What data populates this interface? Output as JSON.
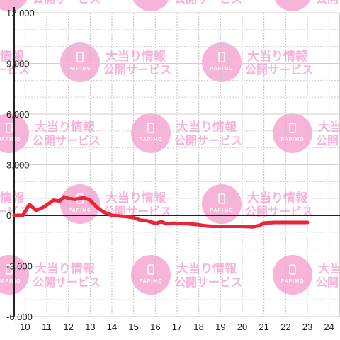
{
  "watermark": {
    "line1": "大当り情報",
    "line2": "公開サービス",
    "brand": "PAPIMO",
    "color": "#f7b3d8"
  },
  "chart_data": {
    "type": "line",
    "title": "",
    "xlabel": "",
    "ylabel": "",
    "xlim": [
      9.5,
      24.5
    ],
    "ylim": [
      -6000,
      12000
    ],
    "x_ticks": [
      "10",
      "11",
      "12",
      "13",
      "14",
      "15",
      "16",
      "17",
      "18",
      "19",
      "20",
      "21",
      "22",
      "23",
      "24"
    ],
    "y_ticks": [
      "12,000",
      "9,000",
      "6,000",
      "3,000",
      "0",
      "-3,000",
      "-6,000"
    ],
    "grid": true,
    "line_color": "#e8253a",
    "series": [
      {
        "x": [
          9.5,
          9.9,
          10.2,
          10.5,
          10.8,
          11.1,
          11.3,
          11.6,
          11.8,
          12.0,
          12.3,
          12.7,
          13.0,
          13.3,
          13.6,
          14.0,
          14.3,
          14.7,
          15.0,
          15.3,
          15.6,
          16.0,
          16.3,
          16.5,
          16.8,
          17.5,
          18.0,
          18.3,
          18.6,
          19.5,
          20.0,
          20.5,
          20.8,
          21.0,
          21.5,
          22.0,
          22.5,
          23.0
        ],
        "y": [
          0,
          0,
          650,
          300,
          450,
          700,
          900,
          850,
          1100,
          1000,
          950,
          1050,
          900,
          500,
          200,
          0,
          -30,
          -80,
          -130,
          -280,
          -320,
          -470,
          -380,
          -500,
          -470,
          -500,
          -560,
          -620,
          -650,
          -650,
          -650,
          -680,
          -600,
          -450,
          -420,
          -420,
          -420,
          -420
        ]
      }
    ]
  }
}
